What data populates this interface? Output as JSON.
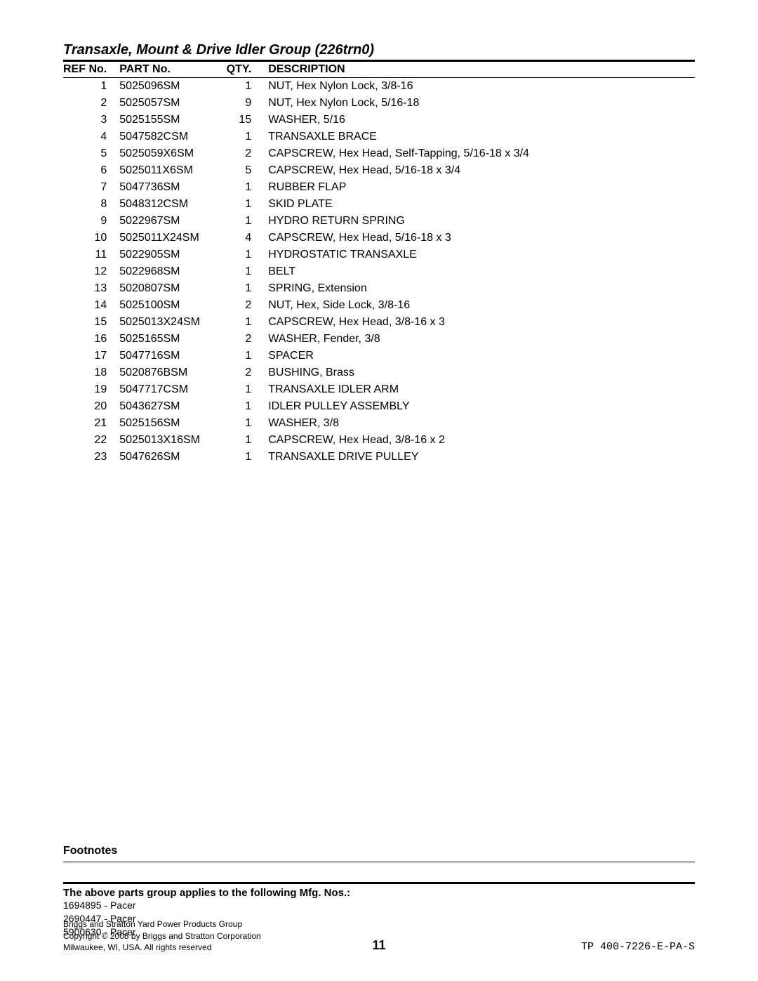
{
  "title": "Transaxle, Mount & Drive Idler Group (226trn0)",
  "columns": {
    "ref": "REF No.",
    "part": "PART No.",
    "qty": "QTY.",
    "desc": "DESCRIPTION"
  },
  "rows": [
    {
      "ref": "1",
      "part": "5025096SM",
      "qty": "1",
      "desc": "NUT, Hex Nylon Lock, 3/8-16"
    },
    {
      "ref": "2",
      "part": "5025057SM",
      "qty": "9",
      "desc": "NUT, Hex Nylon Lock, 5/16-18"
    },
    {
      "ref": "3",
      "part": "5025155SM",
      "qty": "15",
      "desc": "WASHER, 5/16"
    },
    {
      "ref": "4",
      "part": "5047582CSM",
      "qty": "1",
      "desc": "TRANSAXLE BRACE"
    },
    {
      "ref": "5",
      "part": "5025059X6SM",
      "qty": "2",
      "desc": "CAPSCREW, Hex Head, Self-Tapping, 5/16-18 x 3/4"
    },
    {
      "ref": "6",
      "part": "5025011X6SM",
      "qty": "5",
      "desc": "CAPSCREW, Hex Head, 5/16-18 x 3/4"
    },
    {
      "ref": "7",
      "part": "5047736SM",
      "qty": "1",
      "desc": "RUBBER FLAP"
    },
    {
      "ref": "8",
      "part": "5048312CSM",
      "qty": "1",
      "desc": "SKID PLATE"
    },
    {
      "ref": "9",
      "part": "5022967SM",
      "qty": "1",
      "desc": "HYDRO RETURN SPRING"
    },
    {
      "ref": "10",
      "part": "5025011X24SM",
      "qty": "4",
      "desc": "CAPSCREW, Hex Head, 5/16-18 x 3"
    },
    {
      "ref": "11",
      "part": "5022905SM",
      "qty": "1",
      "desc": "HYDROSTATIC TRANSAXLE"
    },
    {
      "ref": "12",
      "part": "5022968SM",
      "qty": "1",
      "desc": "BELT"
    },
    {
      "ref": "13",
      "part": "5020807SM",
      "qty": "1",
      "desc": "SPRING, Extension"
    },
    {
      "ref": "14",
      "part": "5025100SM",
      "qty": "2",
      "desc": "NUT, Hex, Side Lock, 3/8-16"
    },
    {
      "ref": "15",
      "part": "5025013X24SM",
      "qty": "1",
      "desc": "CAPSCREW, Hex Head, 3/8-16 x 3"
    },
    {
      "ref": "16",
      "part": "5025165SM",
      "qty": "2",
      "desc": "WASHER, Fender, 3/8"
    },
    {
      "ref": "17",
      "part": "5047716SM",
      "qty": "1",
      "desc": "SPACER"
    },
    {
      "ref": "18",
      "part": "5020876BSM",
      "qty": "2",
      "desc": "BUSHING, Brass"
    },
    {
      "ref": "19",
      "part": "5047717CSM",
      "qty": "1",
      "desc": "TRANSAXLE IDLER ARM"
    },
    {
      "ref": "20",
      "part": "5043627SM",
      "qty": "1",
      "desc": "IDLER PULLEY ASSEMBLY"
    },
    {
      "ref": "21",
      "part": "5025156SM",
      "qty": "1",
      "desc": "WASHER, 3/8"
    },
    {
      "ref": "22",
      "part": "5025013X16SM",
      "qty": "1",
      "desc": "CAPSCREW, Hex Head, 3/8-16 x 2"
    },
    {
      "ref": "23",
      "part": "5047626SM",
      "qty": "1",
      "desc": "TRANSAXLE DRIVE PULLEY"
    }
  ],
  "footnotes_label": "Footnotes",
  "applies_label": "The above parts group applies to the following Mfg. Nos.:",
  "applies_list": [
    "1694895 - Pacer",
    "2690447 - Pacer",
    "5900630 - Pacer"
  ],
  "footer": {
    "line1": "Briggs and Stratton Yard Power Products Group",
    "line2": "Copyright © 2008 by Briggs and Stratton Corporation",
    "line3": "Milwaukee, WI, USA. All rights reserved",
    "page": "11",
    "docno": "TP 400-7226-E-PA-S"
  }
}
